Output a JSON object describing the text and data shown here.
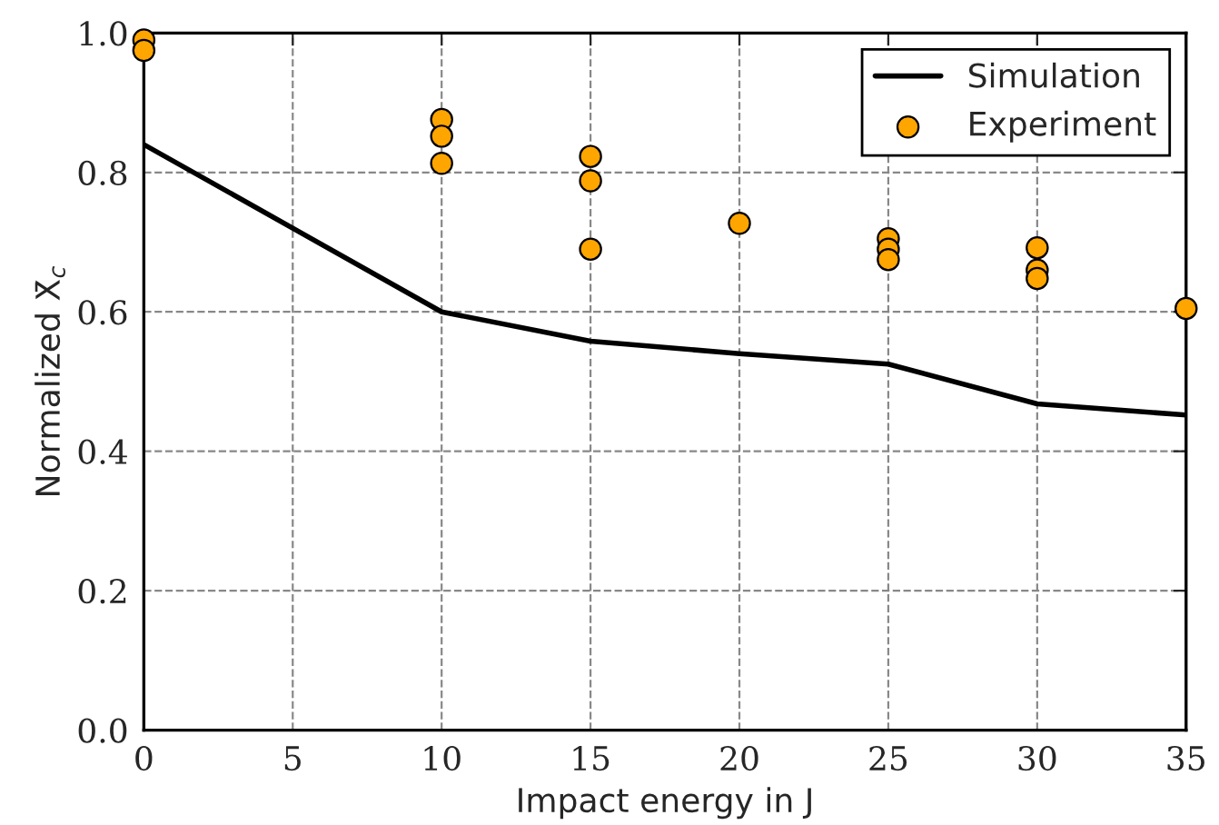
{
  "chart_data": {
    "type": "line",
    "xlabel": "Impact energy in J",
    "ylabel": "Normalized X̄$_{c}$",
    "xlim": [
      0,
      35
    ],
    "xticks": [
      0,
      5,
      10,
      15,
      20,
      25,
      30,
      35
    ],
    "ylim": [
      0,
      1
    ],
    "yticks": [
      {
        "value": 0,
        "label": "0.0"
      },
      {
        "value": 0.2,
        "label": "0.2"
      },
      {
        "value": 0.4,
        "label": "0.4"
      },
      {
        "value": 0.6,
        "label": "0.6"
      },
      {
        "value": 0.8,
        "label": "0.8"
      },
      {
        "value": 1,
        "label": "1.0"
      }
    ],
    "grid": true,
    "legend": "top right",
    "series": [
      {
        "name": "Simulation",
        "color": "#000000",
        "marker": "none",
        "line_style": "solid",
        "x": [
          0,
          10,
          15,
          20,
          25,
          30,
          35
        ],
        "values": [
          0.84,
          0.6,
          0.558,
          0.54,
          0.525,
          0.468,
          0.452
        ]
      },
      {
        "name": "Experiment",
        "type": "scatter",
        "color": "#ffa500",
        "marker": "circle",
        "x": [
          0,
          0,
          10,
          10,
          10,
          15,
          15,
          15,
          20,
          25,
          25,
          25,
          30,
          30,
          30,
          35
        ],
        "values": [
          0.99,
          0.975,
          0.876,
          0.852,
          0.813,
          0.823,
          0.788,
          0.69,
          0.727,
          0.705,
          0.69,
          0.675,
          0.692,
          0.66,
          0.648,
          0.605
        ]
      }
    ]
  }
}
